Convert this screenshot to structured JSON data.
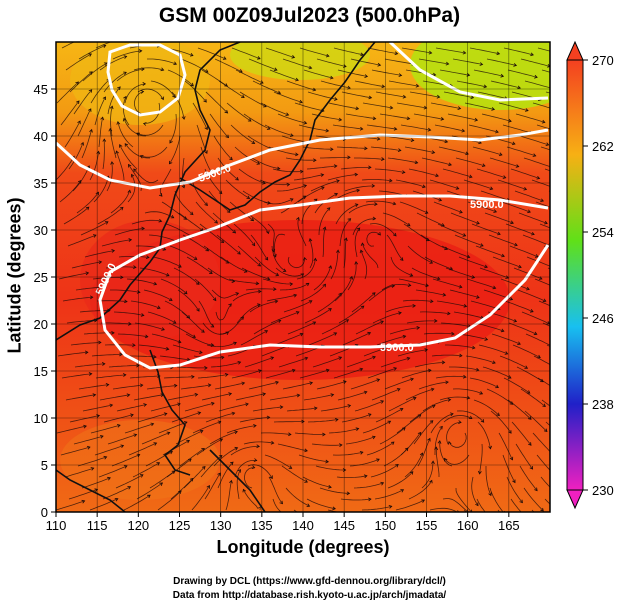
{
  "title": "GSM 00Z09Jul2023 (500.0hPa)",
  "xlabel": "Longitude (degrees)",
  "ylabel": "Latitude  (degrees)",
  "credits": [
    "Drawing by DCL (https://www.gfd-dennou.org/library/dcl/)",
    "Data from http://database.rish.kyoto-u.ac.jp/arch/jmadata/"
  ],
  "map": {
    "lon_range": [
      110,
      170
    ],
    "lat_range": [
      0,
      50
    ],
    "lon_ticks": [
      "110",
      "115",
      "120",
      "125",
      "130",
      "135",
      "140",
      "145",
      "150",
      "155",
      "160",
      "165"
    ],
    "lat_ticks": [
      "0",
      "5",
      "10",
      "15",
      "20",
      "25",
      "30",
      "35",
      "40",
      "45"
    ],
    "contour_labels": [
      "5900.0",
      "5900.0",
      "5900.0",
      "5900.0"
    ]
  },
  "colorbar": {
    "min": 230,
    "max": 270,
    "tick_labels": [
      "270",
      "262",
      "254",
      "246",
      "238",
      "230"
    ]
  },
  "colors": {
    "warm": "#ee2a14",
    "orange": "#f59a10",
    "yellow_green": "#b8e010",
    "contour": "#ffffff"
  }
}
